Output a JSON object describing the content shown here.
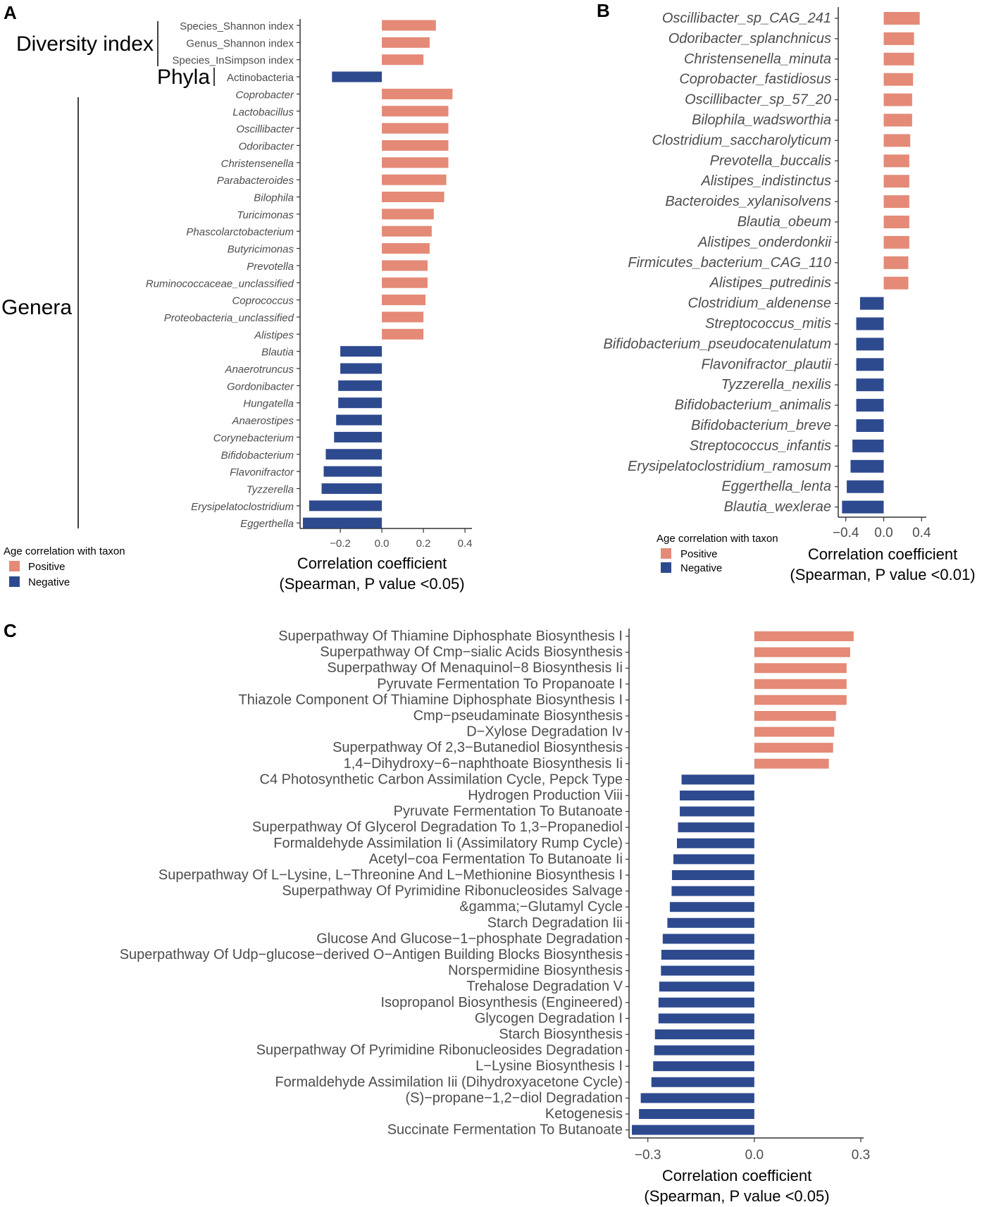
{
  "colors": {
    "positive": "#e48a77",
    "negative": "#2e4a8f",
    "axis": "#333333"
  },
  "chart_data": [
    {
      "id": "A",
      "panel_letter": "A",
      "type": "bar",
      "orientation": "horizontal",
      "categories": [
        "Species_Shannon index",
        "Genus_Shannon index",
        "Species_InSimpson index",
        "Actinobacteria",
        "Coprobacter",
        "Lactobacillus",
        "Oscillibacter",
        "Odoribacter",
        "Christensenella",
        "Parabacteroides",
        "Bilophila",
        "Turicimonas",
        "Phascolarctobacterium",
        "Butyricimonas",
        "Prevotella",
        "Ruminococcaceae_unclassified",
        "Coprococcus",
        "Proteobacteria_unclassified",
        "Alistipes",
        "Blautia",
        "Anaerotruncus",
        "Gordonibacter",
        "Hungatella",
        "Anaerostipes",
        "Corynebacterium",
        "Bifidobacterium",
        "Flavonifractor",
        "Tyzzerella",
        "Erysipelatoclostridium",
        "Eggerthella"
      ],
      "italic_from_index": 4,
      "values": [
        0.26,
        0.23,
        0.2,
        -0.24,
        0.34,
        0.32,
        0.32,
        0.32,
        0.32,
        0.31,
        0.3,
        0.25,
        0.24,
        0.23,
        0.22,
        0.22,
        0.21,
        0.2,
        0.2,
        -0.2,
        -0.2,
        -0.21,
        -0.21,
        -0.22,
        -0.23,
        -0.27,
        -0.28,
        -0.29,
        -0.35,
        -0.38
      ],
      "xlim": [
        -0.38,
        0.42
      ],
      "xticks": [
        -0.2,
        0.0,
        0.2,
        0.4
      ],
      "xticklabels": [
        "−0.2",
        "0.0",
        "0.2",
        "0.4"
      ],
      "xlabel": "Correlation coefficient",
      "xlabel2": "(Spearman, P value <0.05)",
      "groups": [
        {
          "label": "Diversity index",
          "from": 0,
          "to": 2
        },
        {
          "label": "Phyla",
          "from": 3,
          "to": 3
        },
        {
          "label": "Genera",
          "from": 4,
          "to": 29
        }
      ],
      "legend": {
        "title": "Age correlation with taxon",
        "positive": "Positive",
        "negative": "Negative"
      }
    },
    {
      "id": "B",
      "panel_letter": "B",
      "type": "bar",
      "orientation": "horizontal",
      "categories": [
        "Oscillibacter_sp_CAG_241",
        "Odoribacter_splanchnicus",
        "Christensenella_minuta",
        "Coprobacter_fastidiosus",
        "Oscillibacter_sp_57_20",
        "Bilophila_wadsworthia",
        "Clostridium_saccharolyticum",
        "Prevotella_buccalis",
        "Alistipes_indistinctus",
        "Bacteroides_xylanisolvens",
        "Blautia_obeum",
        "Alistipes_onderdonkii",
        "Firmicutes_bacterium_CAG_110",
        "Alistipes_putredinis",
        "Clostridium_aldenense",
        "Streptococcus_mitis",
        "Bifidobacterium_pseudocatenulatum",
        "Flavonifractor_plautii",
        "Tyzzerella_nexilis",
        "Bifidobacterium_animalis",
        "Bifidobacterium_breve",
        "Streptococcus_infantis",
        "Erysipelatoclostridium_ramosum",
        "Eggerthella_lenta",
        "Blautia_wexlerae"
      ],
      "italic_from_index": 0,
      "values": [
        0.38,
        0.32,
        0.32,
        0.31,
        0.3,
        0.3,
        0.28,
        0.27,
        0.27,
        0.27,
        0.27,
        0.27,
        0.26,
        0.26,
        -0.25,
        -0.29,
        -0.29,
        -0.29,
        -0.29,
        -0.29,
        -0.29,
        -0.33,
        -0.35,
        -0.39,
        -0.44
      ],
      "xlim": [
        -0.45,
        0.42
      ],
      "xticks": [
        -0.4,
        0.0,
        0.4
      ],
      "xticklabels": [
        "−0.4",
        "0.0",
        "0.4"
      ],
      "xlabel": "Correlation coefficient",
      "xlabel2": "(Spearman, P value <0.01)",
      "legend": {
        "title": "Age correlation with taxon",
        "positive": "Positive",
        "negative": "Negative"
      }
    },
    {
      "id": "C",
      "panel_letter": "C",
      "type": "bar",
      "orientation": "horizontal",
      "categories": [
        "Superpathway Of Thiamine Diphosphate Biosynthesis I",
        "Superpathway Of Cmp−sialic Acids Biosynthesis",
        "Superpathway Of Menaquinol−8 Biosynthesis Ii",
        "Pyruvate Fermentation To Propanoate I",
        "Thiazole Component Of Thiamine Diphosphate Biosynthesis I",
        "Cmp−pseudaminate Biosynthesis",
        "D−Xylose Degradation Iv",
        "Superpathway Of 2,3−Butanediol Biosynthesis",
        "1,4−Dihydroxy−6−naphthoate Biosynthesis Ii",
        "C4 Photosynthetic Carbon Assimilation Cycle, Pepck Type",
        "Hydrogen Production Viii",
        "Pyruvate Fermentation To Butanoate",
        "Superpathway Of Glycerol Degradation To 1,3−Propanediol",
        "Formaldehyde Assimilation Ii (Assimilatory Rump Cycle)",
        "Acetyl−coa Fermentation To Butanoate Ii",
        "Superpathway Of L−Lysine, L−Threonine And L−Methionine Biosynthesis I",
        "Superpathway Of Pyrimidine Ribonucleosides Salvage",
        "&gamma;−Glutamyl Cycle",
        "Starch Degradation Iii",
        "Glucose And Glucose−1−phosphate Degradation",
        "Superpathway Of Udp−glucose−derived O−Antigen Building Blocks Biosynthesis",
        "Norspermidine Biosynthesis",
        "Trehalose Degradation V",
        "Isopropanol Biosynthesis (Engineered)",
        "Glycogen Degradation I",
        "Starch Biosynthesis",
        "Superpathway Of Pyrimidine Ribonucleosides Degradation",
        "L−Lysine Biosynthesis I",
        "Formaldehyde Assimilation Iii (Dihydroxyacetone Cycle)",
        "(S)−propane−1,2−diol Degradation",
        "Ketogenesis",
        "Succinate Fermentation To Butanoate"
      ],
      "italic_from_index": 99,
      "values": [
        0.28,
        0.27,
        0.26,
        0.26,
        0.26,
        0.23,
        0.225,
        0.222,
        0.21,
        -0.205,
        -0.21,
        -0.21,
        -0.215,
        -0.218,
        -0.228,
        -0.232,
        -0.233,
        -0.238,
        -0.245,
        -0.258,
        -0.262,
        -0.263,
        -0.268,
        -0.27,
        -0.27,
        -0.28,
        -0.282,
        -0.285,
        -0.29,
        -0.32,
        -0.325,
        -0.345
      ],
      "xlim": [
        -0.345,
        0.3
      ],
      "xticks": [
        -0.3,
        0.0,
        0.3
      ],
      "xticklabels": [
        "−0.3",
        "0.0",
        "0.3"
      ],
      "xlabel": "Correlation coefficient",
      "xlabel2": "(Spearman, P value <0.05)"
    }
  ]
}
